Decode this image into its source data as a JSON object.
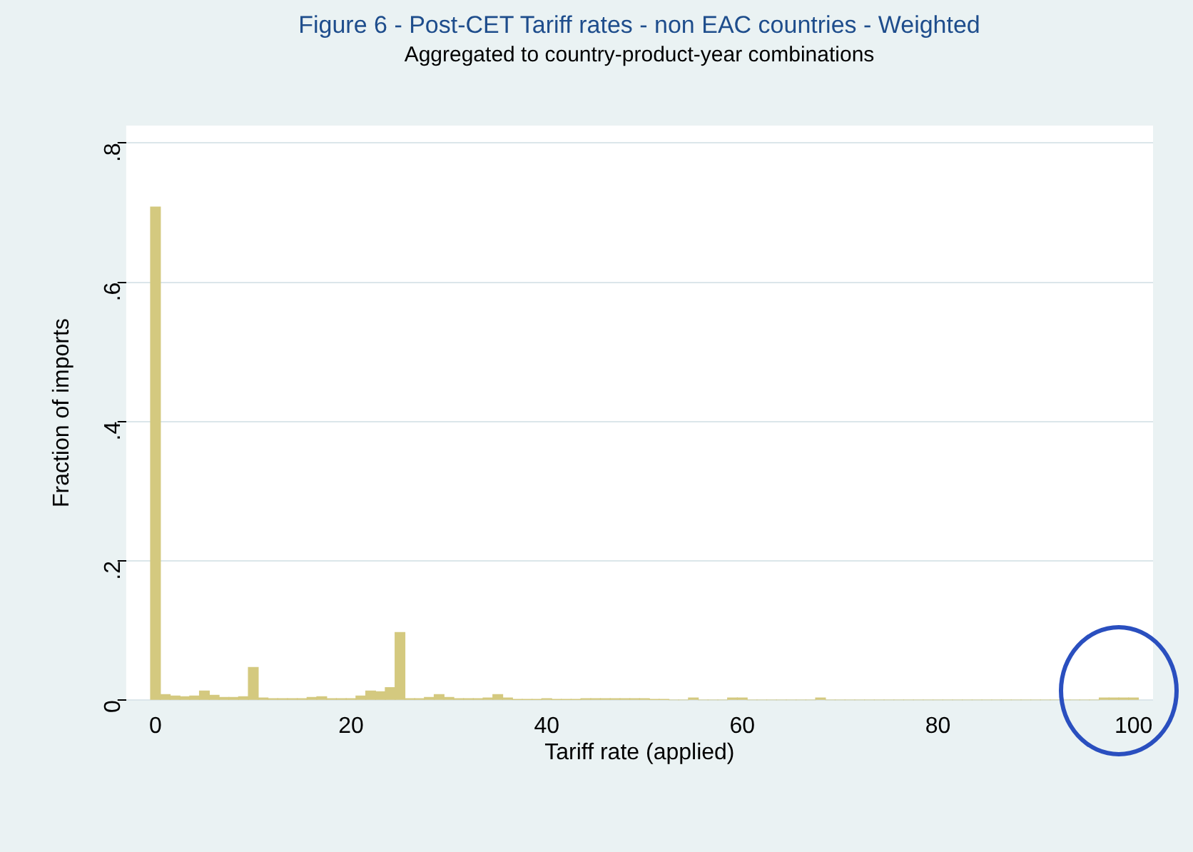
{
  "chart_data": {
    "type": "histogram",
    "title": "Figure 6 - Post-CET Tariff rates - non EAC countries - Weighted",
    "subtitle": "Aggregated to country-product-year combinations",
    "xlabel": "Tariff rate (applied)",
    "ylabel": "Fraction of imports",
    "bins": [
      -0.5,
      0.5,
      1.5,
      2.5,
      3.5,
      4.5,
      5.5,
      6.5,
      7.5,
      8.5,
      9.5,
      10.5,
      11.5,
      12.5,
      13.5,
      14.5,
      15.5,
      16.5,
      17.5,
      18.5,
      19.5,
      20.5,
      21.5,
      22.5,
      23.5,
      24.5,
      25.5,
      26.5,
      27.5,
      28.5,
      29.5,
      30.5,
      31.5,
      32.5,
      33.5,
      34.5,
      35.5,
      36.5,
      37.5,
      38.5,
      39.5,
      40.5,
      41.5,
      42.5,
      43.5,
      44.5,
      45.5,
      46.5,
      47.5,
      48.5,
      49.5,
      50.5,
      51.5,
      52.5,
      53.5,
      54.5,
      55.5,
      56.5,
      57.5,
      58.5,
      59.5,
      60.5,
      61.5,
      62.5,
      63.5,
      64.5,
      65.5,
      66.5,
      67.5,
      68.5,
      69.5,
      70.5,
      71.5,
      72.5,
      73.5,
      74.5,
      75.5,
      76.5,
      77.5,
      78.5,
      79.5,
      80.5,
      81.5,
      82.5,
      83.5,
      84.5,
      85.5,
      86.5,
      87.5,
      88.5,
      89.5,
      90.5,
      91.5,
      92.5,
      93.5,
      94.5,
      95.5,
      96.5,
      97.5,
      98.5,
      99.5,
      100.5
    ],
    "values": [
      0.708,
      0.008,
      0.006,
      0.005,
      0.006,
      0.013,
      0.007,
      0.004,
      0.004,
      0.005,
      0.047,
      0.003,
      0.002,
      0.002,
      0.002,
      0.002,
      0.004,
      0.005,
      0.002,
      0.002,
      0.002,
      0.006,
      0.013,
      0.012,
      0.018,
      0.097,
      0.002,
      0.002,
      0.004,
      0.008,
      0.004,
      0.002,
      0.002,
      0.002,
      0.003,
      0.008,
      0.003,
      0.001,
      0.001,
      0.001,
      0.002,
      0.001,
      0.001,
      0.001,
      0.002,
      0.002,
      0.002,
      0.002,
      0.002,
      0.002,
      0.002,
      0.001,
      0.001,
      0,
      0,
      0.003,
      0,
      0,
      0,
      0.003,
      0.003,
      0,
      0,
      0,
      0,
      0,
      0,
      0,
      0.003,
      0,
      0,
      0,
      0,
      0,
      0,
      0,
      0,
      0,
      0,
      0,
      0,
      0,
      0,
      0,
      0,
      0,
      0,
      0,
      0,
      0,
      0,
      0,
      0,
      0,
      0,
      0,
      0,
      0.003,
      0.003,
      0.003,
      0.003
    ],
    "color": "#d4c97f",
    "xlim": [
      -3,
      102
    ],
    "xticks": [
      0,
      20,
      40,
      60,
      80,
      100
    ],
    "ylim": [
      0,
      0.825
    ],
    "yticks": [
      0,
      {
        "value": 0.2,
        "label": ".2"
      },
      {
        "value": 0.4,
        "label": ".4"
      },
      {
        "value": 0.6,
        "label": ".6"
      },
      {
        "value": 0.8,
        "label": ".8"
      }
    ],
    "grid": "y",
    "legend": false
  }
}
